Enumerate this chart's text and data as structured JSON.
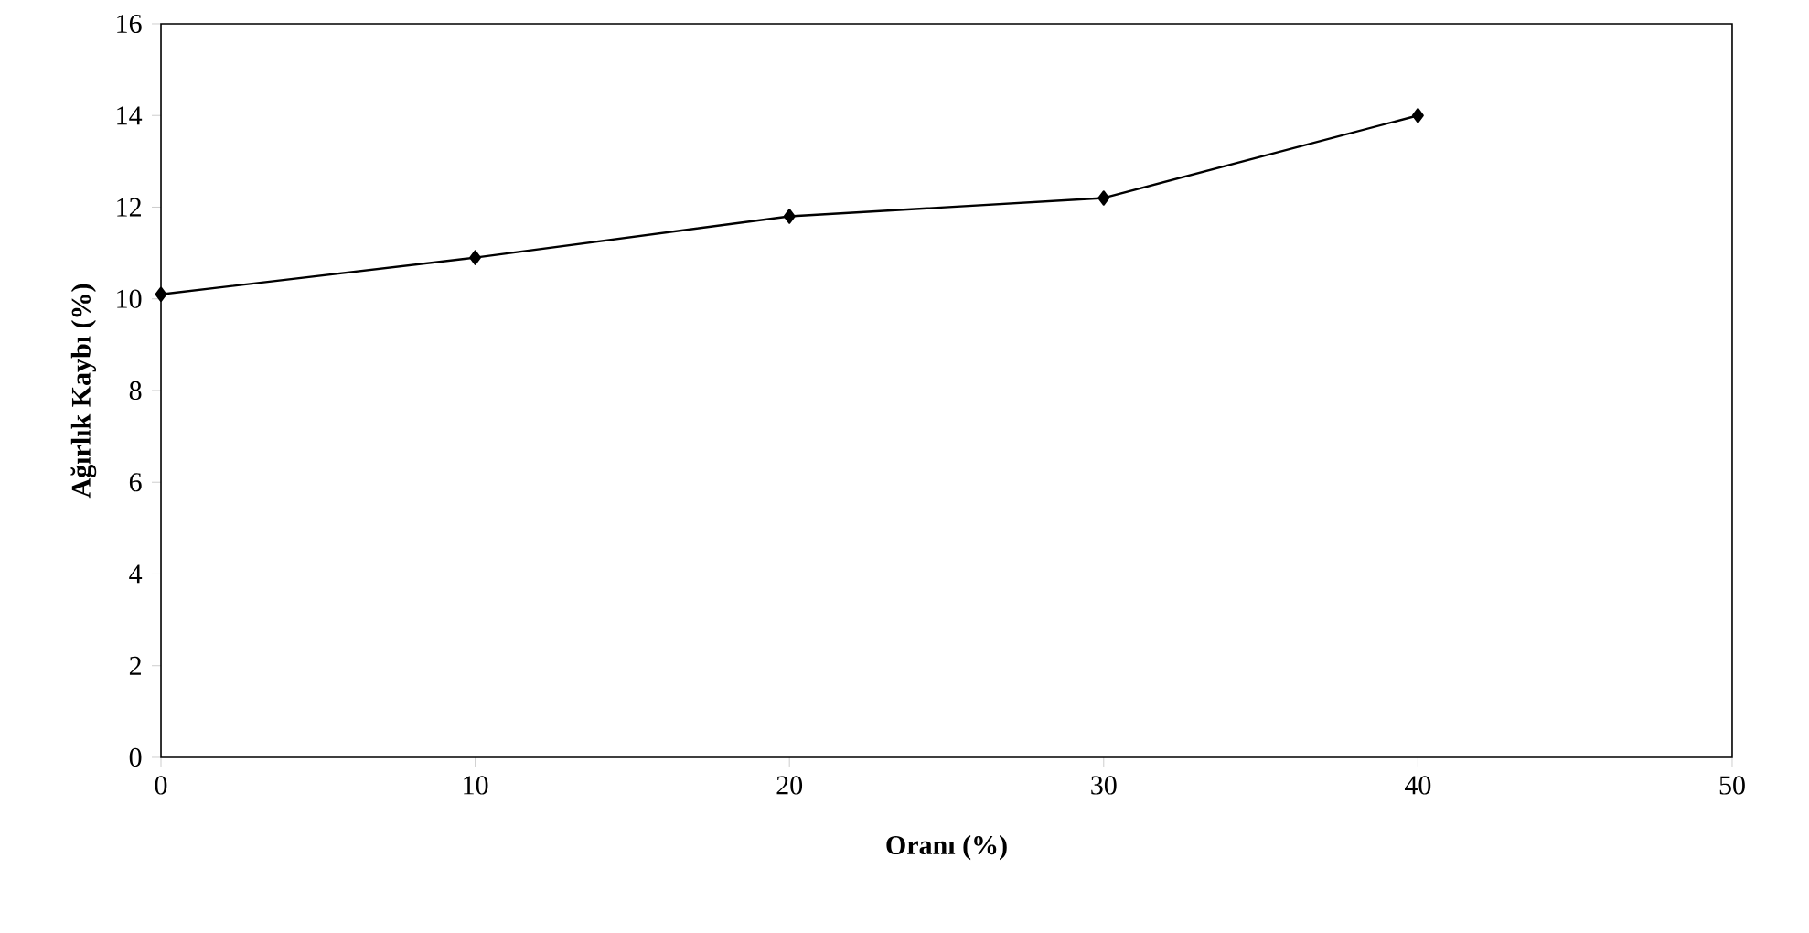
{
  "chart_data": {
    "type": "line",
    "xlabel": "Oranı (%)",
    "ylabel": "Ağırlık Kaybı (%)",
    "x": [
      0,
      10,
      20,
      30,
      40
    ],
    "series": [
      {
        "color": "#000000",
        "values": [
          10.1,
          10.9,
          11.8,
          12.2,
          14.0
        ]
      }
    ],
    "xlim": [
      0,
      50
    ],
    "ylim": [
      0,
      16
    ],
    "xticks": [
      0,
      10,
      20,
      30,
      40,
      50
    ],
    "yticks": [
      0,
      2,
      4,
      6,
      8,
      10,
      12,
      14,
      16
    ],
    "grid": false,
    "marker": "diamond",
    "line_style": "solid"
  }
}
